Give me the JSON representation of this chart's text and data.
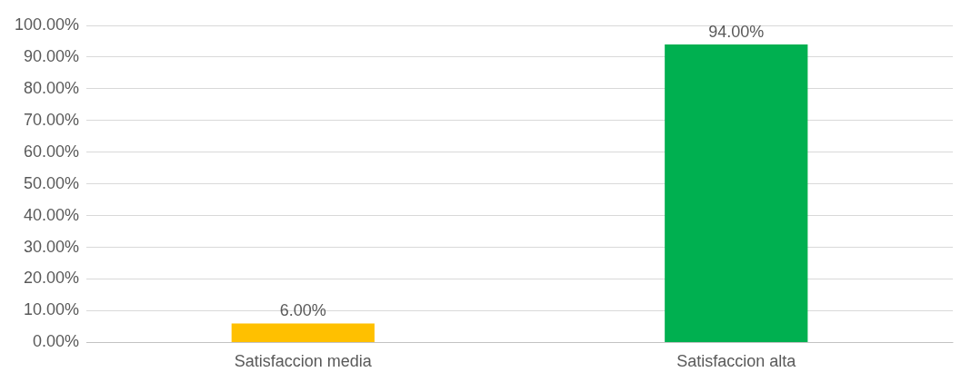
{
  "chart_data": {
    "type": "bar",
    "categories": [
      "Satisfaccion media",
      "Satisfaccion alta"
    ],
    "values": [
      6,
      94
    ],
    "colors": [
      "#ffc000",
      "#00b050"
    ],
    "value_labels": [
      "6.00%",
      "94.00%"
    ],
    "ylim": [
      0,
      100
    ],
    "yticks": [
      {
        "value": 0,
        "label": "0.00%"
      },
      {
        "value": 10,
        "label": "10.00%"
      },
      {
        "value": 20,
        "label": "20.00%"
      },
      {
        "value": 30,
        "label": "30.00%"
      },
      {
        "value": 40,
        "label": "40.00%"
      },
      {
        "value": 50,
        "label": "50.00%"
      },
      {
        "value": 60,
        "label": "60.00%"
      },
      {
        "value": 70,
        "label": "70.00%"
      },
      {
        "value": 80,
        "label": "80.00%"
      },
      {
        "value": 90,
        "label": "90.00%"
      },
      {
        "value": 100,
        "label": "100.00%"
      }
    ],
    "grid": "y",
    "legend": false
  }
}
